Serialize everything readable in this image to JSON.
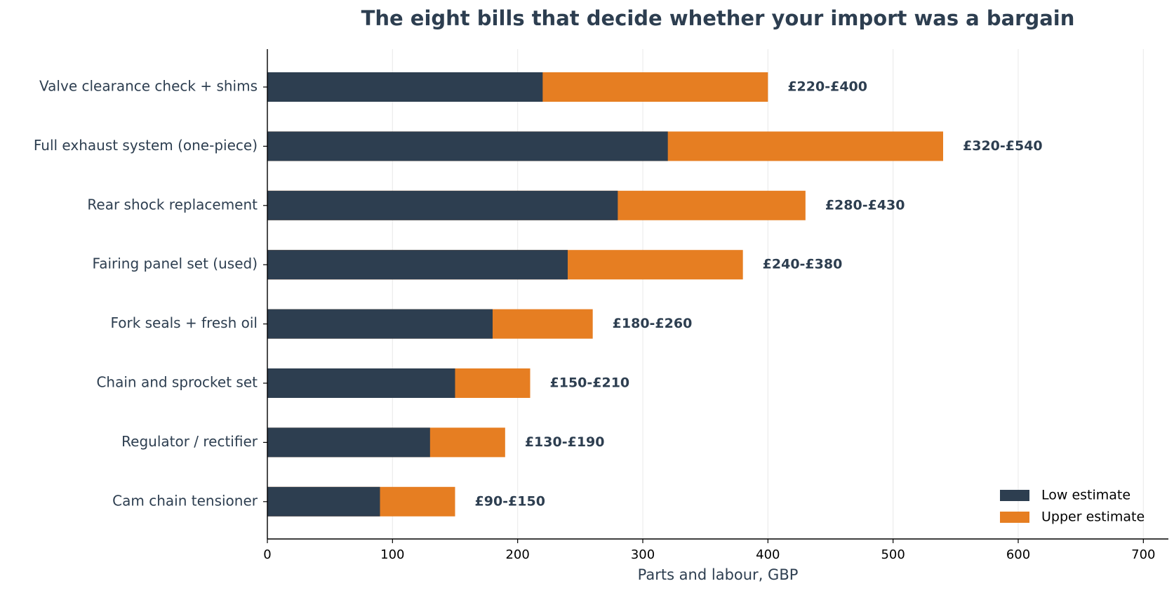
{
  "chart_data": {
    "type": "range-bar",
    "title": "The eight bills that decide whether your import was a bargain",
    "x_label": "Parts and labour, GBP",
    "categories": [
      "Valve clearance check + shims",
      "Full exhaust system (one-piece)",
      "Rear shock replacement",
      "Fairing panel set (used)",
      "Fork seals + fresh oil",
      "Chain and sprocket set",
      "Regulator / rectifier",
      "Cam chain tensioner"
    ],
    "series": [
      {
        "name": "Low estimate",
        "color": "#2d3e50",
        "values": [
          220,
          320,
          280,
          240,
          180,
          150,
          130,
          90
        ]
      },
      {
        "name": "Upper estimate",
        "color": "#e67e22",
        "values": [
          400,
          540,
          430,
          380,
          260,
          210,
          190,
          150
        ],
        "value_labels": [
          "£220-£400",
          "£320-£540",
          "£280-£430",
          "£240-£380",
          "£180-£260",
          "£150-£210",
          "£130-£190",
          "£90-£150"
        ]
      }
    ],
    "xlim": [
      0,
      720
    ],
    "xticks": [
      0,
      100,
      200,
      300,
      400,
      500,
      600,
      700
    ],
    "grid": true,
    "legend": "lower right"
  }
}
